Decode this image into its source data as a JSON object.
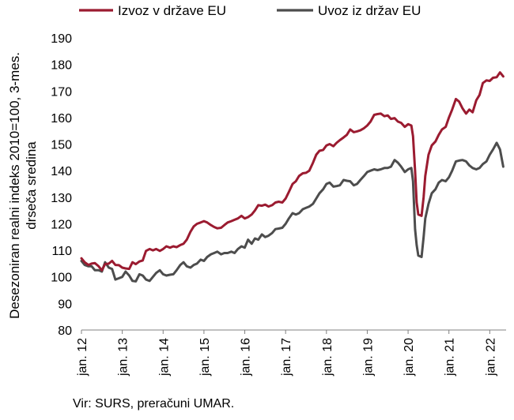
{
  "chart_data": {
    "type": "line",
    "ylabel_lines": [
      "Desezoniran realni indeks 2010=100, 3-mes.",
      "drseča sredina"
    ],
    "ylim": [
      80,
      190
    ],
    "yticks": [
      80,
      90,
      100,
      110,
      120,
      130,
      140,
      150,
      160,
      170,
      180,
      190
    ],
    "xlim": [
      2012.0,
      2022.4
    ],
    "xticks": [
      {
        "x": 2012,
        "label": "jan. 12"
      },
      {
        "x": 2013,
        "label": "jan. 13"
      },
      {
        "x": 2014,
        "label": "jan. 14"
      },
      {
        "x": 2015,
        "label": "jan. 15"
      },
      {
        "x": 2016,
        "label": "jan. 16"
      },
      {
        "x": 2017,
        "label": "jan. 17"
      },
      {
        "x": 2018,
        "label": "jan. 18"
      },
      {
        "x": 2019,
        "label": "jan. 19"
      },
      {
        "x": 2020,
        "label": "jan. 20"
      },
      {
        "x": 2021,
        "label": "jan. 21"
      },
      {
        "x": 2022,
        "label": "jan. 22"
      }
    ],
    "grid": false,
    "legend_position": "top",
    "series": [
      {
        "name": "Izvoz v države EU",
        "color": "#9b1b30",
        "points": [
          [
            2012.0,
            107.0
          ],
          [
            2012.08,
            105.5
          ],
          [
            2012.17,
            104.5
          ],
          [
            2012.25,
            105.0
          ],
          [
            2012.33,
            105.2
          ],
          [
            2012.42,
            104.0
          ],
          [
            2012.5,
            102.5
          ],
          [
            2012.58,
            104.8
          ],
          [
            2012.67,
            105.0
          ],
          [
            2012.75,
            106.0
          ],
          [
            2012.83,
            104.5
          ],
          [
            2012.92,
            104.4
          ],
          [
            2013.0,
            103.5
          ],
          [
            2013.08,
            103.2
          ],
          [
            2013.17,
            103.0
          ],
          [
            2013.25,
            105.5
          ],
          [
            2013.33,
            104.8
          ],
          [
            2013.42,
            105.8
          ],
          [
            2013.5,
            106.2
          ],
          [
            2013.58,
            109.8
          ],
          [
            2013.67,
            110.5
          ],
          [
            2013.75,
            110.0
          ],
          [
            2013.83,
            110.5
          ],
          [
            2013.92,
            109.8
          ],
          [
            2014.0,
            110.5
          ],
          [
            2014.08,
            111.5
          ],
          [
            2014.17,
            111.0
          ],
          [
            2014.25,
            111.5
          ],
          [
            2014.33,
            111.2
          ],
          [
            2014.42,
            112.0
          ],
          [
            2014.5,
            112.5
          ],
          [
            2014.58,
            114.0
          ],
          [
            2014.67,
            117.0
          ],
          [
            2014.75,
            119.0
          ],
          [
            2014.83,
            120.0
          ],
          [
            2014.92,
            120.5
          ],
          [
            2015.0,
            121.0
          ],
          [
            2015.08,
            120.5
          ],
          [
            2015.17,
            119.5
          ],
          [
            2015.25,
            118.8
          ],
          [
            2015.33,
            118.3
          ],
          [
            2015.42,
            118.5
          ],
          [
            2015.5,
            119.5
          ],
          [
            2015.58,
            120.5
          ],
          [
            2015.67,
            121.0
          ],
          [
            2015.75,
            121.5
          ],
          [
            2015.83,
            122.0
          ],
          [
            2015.92,
            123.0
          ],
          [
            2016.0,
            122.0
          ],
          [
            2016.08,
            122.5
          ],
          [
            2016.17,
            123.5
          ],
          [
            2016.25,
            125.0
          ],
          [
            2016.33,
            127.0
          ],
          [
            2016.42,
            126.8
          ],
          [
            2016.5,
            127.2
          ],
          [
            2016.58,
            126.5
          ],
          [
            2016.67,
            127.0
          ],
          [
            2016.75,
            128.0
          ],
          [
            2016.83,
            128.3
          ],
          [
            2016.92,
            128.0
          ],
          [
            2017.0,
            129.5
          ],
          [
            2017.08,
            132.0
          ],
          [
            2017.17,
            135.0
          ],
          [
            2017.25,
            136.0
          ],
          [
            2017.33,
            138.0
          ],
          [
            2017.42,
            139.0
          ],
          [
            2017.5,
            139.2
          ],
          [
            2017.58,
            140.0
          ],
          [
            2017.67,
            143.0
          ],
          [
            2017.75,
            146.0
          ],
          [
            2017.83,
            147.5
          ],
          [
            2017.92,
            147.8
          ],
          [
            2018.0,
            149.5
          ],
          [
            2018.08,
            150.0
          ],
          [
            2018.17,
            149.2
          ],
          [
            2018.25,
            150.5
          ],
          [
            2018.33,
            151.5
          ],
          [
            2018.42,
            152.5
          ],
          [
            2018.5,
            153.5
          ],
          [
            2018.58,
            155.5
          ],
          [
            2018.67,
            154.5
          ],
          [
            2018.75,
            154.8
          ],
          [
            2018.83,
            155.2
          ],
          [
            2018.92,
            156.0
          ],
          [
            2019.0,
            157.0
          ],
          [
            2019.08,
            158.5
          ],
          [
            2019.17,
            161.0
          ],
          [
            2019.25,
            161.3
          ],
          [
            2019.33,
            161.5
          ],
          [
            2019.42,
            160.5
          ],
          [
            2019.5,
            160.8
          ],
          [
            2019.58,
            159.5
          ],
          [
            2019.67,
            159.8
          ],
          [
            2019.75,
            158.5
          ],
          [
            2019.83,
            158.0
          ],
          [
            2019.92,
            156.5
          ],
          [
            2020.0,
            157.5
          ],
          [
            2020.08,
            157.0
          ],
          [
            2020.12,
            153.0
          ],
          [
            2020.17,
            140.0
          ],
          [
            2020.21,
            128.0
          ],
          [
            2020.25,
            123.5
          ],
          [
            2020.33,
            123.0
          ],
          [
            2020.38,
            130.0
          ],
          [
            2020.42,
            138.0
          ],
          [
            2020.5,
            146.0
          ],
          [
            2020.58,
            149.5
          ],
          [
            2020.67,
            151.0
          ],
          [
            2020.75,
            153.5
          ],
          [
            2020.83,
            155.5
          ],
          [
            2020.92,
            156.5
          ],
          [
            2021.0,
            160.0
          ],
          [
            2021.08,
            163.0
          ],
          [
            2021.17,
            167.0
          ],
          [
            2021.25,
            166.0
          ],
          [
            2021.33,
            163.5
          ],
          [
            2021.42,
            161.5
          ],
          [
            2021.5,
            163.0
          ],
          [
            2021.58,
            162.0
          ],
          [
            2021.67,
            166.5
          ],
          [
            2021.75,
            168.5
          ],
          [
            2021.83,
            173.0
          ],
          [
            2021.92,
            174.0
          ],
          [
            2022.0,
            173.8
          ],
          [
            2022.08,
            175.0
          ],
          [
            2022.17,
            175.2
          ],
          [
            2022.25,
            177.0
          ],
          [
            2022.33,
            175.5
          ]
        ]
      },
      {
        "name": "Uvoz iz držav EU",
        "color": "#4d4d4d",
        "points": [
          [
            2012.0,
            106.0
          ],
          [
            2012.08,
            104.5
          ],
          [
            2012.17,
            104.0
          ],
          [
            2012.25,
            104.0
          ],
          [
            2012.33,
            102.5
          ],
          [
            2012.42,
            102.5
          ],
          [
            2012.5,
            102.0
          ],
          [
            2012.58,
            105.5
          ],
          [
            2012.67,
            103.5
          ],
          [
            2012.75,
            103.0
          ],
          [
            2012.83,
            99.0
          ],
          [
            2012.92,
            99.5
          ],
          [
            2013.0,
            100.0
          ],
          [
            2013.08,
            102.0
          ],
          [
            2013.17,
            100.5
          ],
          [
            2013.25,
            98.5
          ],
          [
            2013.33,
            98.3
          ],
          [
            2013.42,
            101.0
          ],
          [
            2013.5,
            100.5
          ],
          [
            2013.58,
            99.0
          ],
          [
            2013.67,
            98.5
          ],
          [
            2013.75,
            100.0
          ],
          [
            2013.83,
            101.5
          ],
          [
            2013.92,
            102.5
          ],
          [
            2014.0,
            101.0
          ],
          [
            2014.08,
            100.5
          ],
          [
            2014.17,
            100.8
          ],
          [
            2014.25,
            101.0
          ],
          [
            2014.33,
            102.5
          ],
          [
            2014.42,
            104.5
          ],
          [
            2014.5,
            105.5
          ],
          [
            2014.58,
            104.0
          ],
          [
            2014.67,
            103.5
          ],
          [
            2014.75,
            104.5
          ],
          [
            2014.83,
            105.0
          ],
          [
            2014.92,
            106.5
          ],
          [
            2015.0,
            106.0
          ],
          [
            2015.08,
            107.5
          ],
          [
            2015.17,
            108.5
          ],
          [
            2015.25,
            109.0
          ],
          [
            2015.33,
            109.5
          ],
          [
            2015.42,
            108.5
          ],
          [
            2015.5,
            109.0
          ],
          [
            2015.58,
            109.0
          ],
          [
            2015.67,
            109.5
          ],
          [
            2015.75,
            109.0
          ],
          [
            2015.83,
            110.5
          ],
          [
            2015.92,
            111.5
          ],
          [
            2016.0,
            111.0
          ],
          [
            2016.08,
            114.0
          ],
          [
            2016.17,
            112.5
          ],
          [
            2016.25,
            114.5
          ],
          [
            2016.33,
            114.0
          ],
          [
            2016.42,
            116.0
          ],
          [
            2016.5,
            115.0
          ],
          [
            2016.58,
            115.5
          ],
          [
            2016.67,
            116.5
          ],
          [
            2016.75,
            118.0
          ],
          [
            2016.83,
            118.2
          ],
          [
            2016.92,
            118.5
          ],
          [
            2017.0,
            120.0
          ],
          [
            2017.08,
            122.0
          ],
          [
            2017.17,
            124.0
          ],
          [
            2017.25,
            123.5
          ],
          [
            2017.33,
            124.0
          ],
          [
            2017.42,
            125.5
          ],
          [
            2017.5,
            126.0
          ],
          [
            2017.58,
            126.5
          ],
          [
            2017.67,
            127.5
          ],
          [
            2017.75,
            129.5
          ],
          [
            2017.83,
            131.5
          ],
          [
            2017.92,
            133.0
          ],
          [
            2018.0,
            135.0
          ],
          [
            2018.08,
            135.5
          ],
          [
            2018.17,
            134.0
          ],
          [
            2018.25,
            134.2
          ],
          [
            2018.33,
            134.5
          ],
          [
            2018.42,
            136.5
          ],
          [
            2018.5,
            136.2
          ],
          [
            2018.58,
            136.0
          ],
          [
            2018.67,
            134.5
          ],
          [
            2018.75,
            135.0
          ],
          [
            2018.83,
            136.5
          ],
          [
            2018.92,
            138.0
          ],
          [
            2019.0,
            139.5
          ],
          [
            2019.08,
            140.0
          ],
          [
            2019.17,
            140.5
          ],
          [
            2019.25,
            140.2
          ],
          [
            2019.33,
            140.5
          ],
          [
            2019.42,
            141.0
          ],
          [
            2019.5,
            141.0
          ],
          [
            2019.58,
            141.5
          ],
          [
            2019.67,
            144.0
          ],
          [
            2019.75,
            143.0
          ],
          [
            2019.83,
            141.5
          ],
          [
            2019.92,
            139.5
          ],
          [
            2020.0,
            140.5
          ],
          [
            2020.08,
            141.0
          ],
          [
            2020.12,
            136.0
          ],
          [
            2020.17,
            118.0
          ],
          [
            2020.21,
            112.0
          ],
          [
            2020.25,
            108.0
          ],
          [
            2020.33,
            107.5
          ],
          [
            2020.38,
            115.0
          ],
          [
            2020.42,
            122.0
          ],
          [
            2020.5,
            127.5
          ],
          [
            2020.58,
            131.5
          ],
          [
            2020.67,
            133.0
          ],
          [
            2020.75,
            135.5
          ],
          [
            2020.83,
            136.5
          ],
          [
            2020.92,
            136.0
          ],
          [
            2021.0,
            137.5
          ],
          [
            2021.08,
            140.0
          ],
          [
            2021.17,
            143.5
          ],
          [
            2021.25,
            143.8
          ],
          [
            2021.33,
            144.0
          ],
          [
            2021.42,
            143.5
          ],
          [
            2021.5,
            142.0
          ],
          [
            2021.58,
            141.0
          ],
          [
            2021.67,
            140.5
          ],
          [
            2021.75,
            141.0
          ],
          [
            2021.83,
            142.5
          ],
          [
            2021.92,
            143.5
          ],
          [
            2022.0,
            146.0
          ],
          [
            2022.08,
            148.0
          ],
          [
            2022.17,
            150.5
          ],
          [
            2022.25,
            148.0
          ],
          [
            2022.33,
            141.5
          ]
        ]
      }
    ]
  },
  "source_text": "Vir: SURS, preračuni UMAR."
}
